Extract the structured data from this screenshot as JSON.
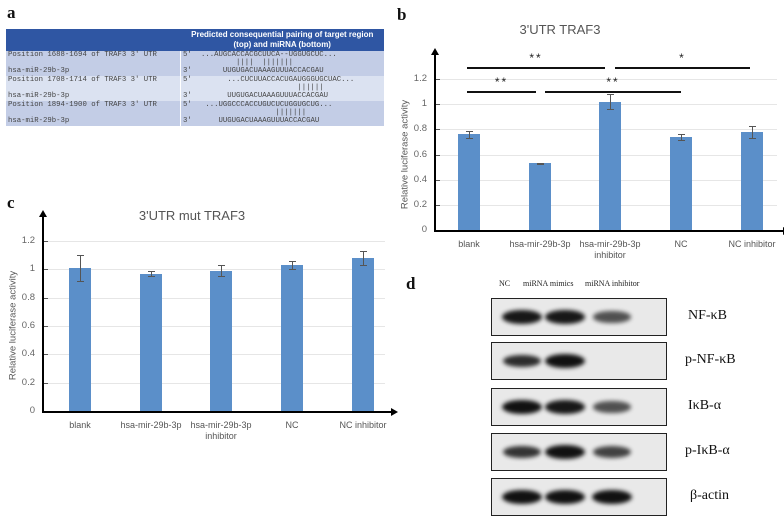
{
  "panels": {
    "a": {
      "letter": "a",
      "header": "Predicted consequential pairing of target region (top) and miRNA (bottom)",
      "rows": [
        {
          "target_label": "Position 1688-1694 of TRAF3 3' UTR",
          "target_end": "5'",
          "target_seq": "...AUGCACCACGCUUCA--UGGUGCUC...",
          "pairing": "        ||||  |||||||",
          "mirna_label": "hsa-miR-29b-3p",
          "mirna_end": "3'",
          "mirna_seq": "     UUGUGACUAAAGUUUACCACGAU"
        },
        {
          "target_label": "Position 1708-1714 of TRAF3 3' UTR",
          "target_end": "5'",
          "target_seq": "      ...CUCUUACCACUGAUGGGUGCUAC...",
          "pairing": "                      ||||||",
          "mirna_label": "hsa-miR-29b-3p",
          "mirna_end": "3'",
          "mirna_seq": "      UUGUGACUAAAGUUUACCACGAU"
        },
        {
          "target_label": "Position 1894-1900 of TRAF3 3' UTR",
          "target_end": "5'",
          "target_seq": " ...UGGCCCACCUGUCUCUGGUGCUG...",
          "pairing": "                 |||||||",
          "mirna_label": "hsa-miR-29b-3p",
          "mirna_end": "3'",
          "mirna_seq": "    UUGUGACUAAAGUUUACCACGAU"
        }
      ]
    },
    "b": {
      "letter": "b"
    },
    "c": {
      "letter": "c"
    },
    "d": {
      "letter": "d",
      "lanes": [
        "NC",
        "miRNA mimics",
        "miRNA inhibitor"
      ],
      "blots": [
        {
          "name": "NF-κB",
          "intensity": [
            0.95,
            0.95,
            0.55
          ]
        },
        {
          "name": "p-NF-κB",
          "intensity": [
            0.8,
            1.0,
            0.05
          ]
        },
        {
          "name": "IκB-α",
          "intensity": [
            1.0,
            0.95,
            0.55
          ]
        },
        {
          "name": "p-IκB-α",
          "intensity": [
            0.75,
            1.0,
            0.65
          ]
        },
        {
          "name": "β-actin",
          "intensity": [
            1.0,
            1.0,
            1.0
          ]
        }
      ]
    }
  },
  "chart_data": [
    {
      "panel": "b",
      "type": "bar",
      "title": "3'UTR TRAF3",
      "xlabel": "",
      "ylabel": "Relative luciferase activity",
      "categories": [
        "blank",
        "hsa-mir-29b-3p",
        "hsa-mir-29b-3p inhibitor",
        "NC",
        "NC inhibitor"
      ],
      "values": [
        0.76,
        0.53,
        1.02,
        0.74,
        0.78
      ],
      "errors": [
        0.03,
        0.003,
        0.06,
        0.025,
        0.05
      ],
      "yticks": [
        "0",
        "0.2",
        "0.4",
        "0.6",
        "0.8",
        "1",
        "1.2"
      ],
      "ylim": [
        0,
        1.2
      ],
      "grid": true,
      "significance": [
        {
          "from": "blank",
          "to": "hsa-mir-29b-3p",
          "label": "**"
        },
        {
          "from": "hsa-mir-29b-3p",
          "to": "NC",
          "label": "**"
        },
        {
          "from": "blank",
          "to": "hsa-mir-29b-3p inhibitor",
          "label": "**"
        },
        {
          "from": "hsa-mir-29b-3p inhibitor",
          "to": "NC inhibitor",
          "label": "*"
        }
      ]
    },
    {
      "panel": "c",
      "type": "bar",
      "title": "3'UTR mut TRAF3",
      "xlabel": "",
      "ylabel": "Relative luciferase activity",
      "categories": [
        "blank",
        "hsa-mir-29b-3p",
        "hsa-mir-29b-3p inhibitor",
        "NC",
        "NC inhibitor"
      ],
      "values": [
        1.01,
        0.97,
        0.99,
        1.03,
        1.08
      ],
      "errors": [
        0.09,
        0.015,
        0.04,
        0.03,
        0.05
      ],
      "yticks": [
        "0",
        "0.2",
        "0.4",
        "0.6",
        "0.8",
        "1",
        "1.2"
      ],
      "ylim": [
        0,
        1.2
      ],
      "grid": true
    }
  ]
}
